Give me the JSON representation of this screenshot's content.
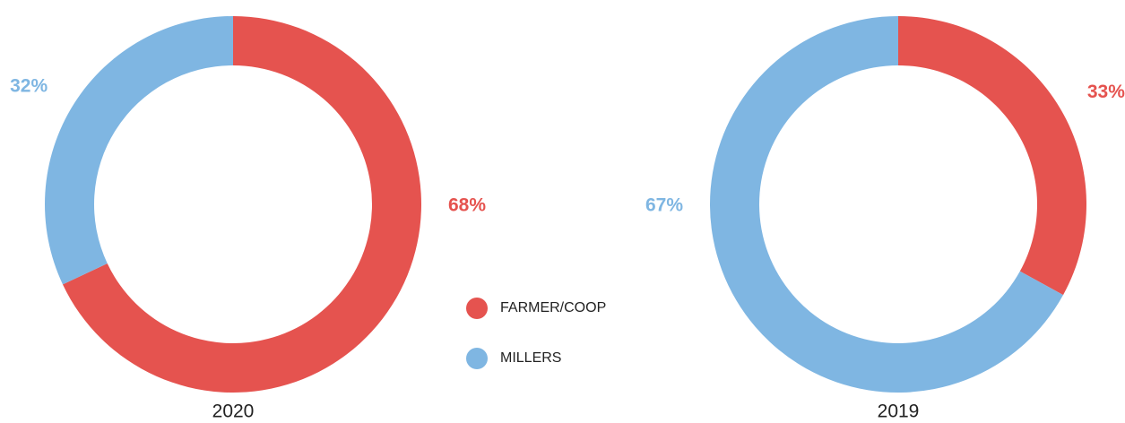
{
  "chart_data": [
    {
      "type": "donut",
      "title": "2020",
      "categories": [
        "FARMER/COOP",
        "MILLERS"
      ],
      "values": [
        68,
        32
      ],
      "value_labels": [
        "68%",
        "32%"
      ],
      "colors": [
        "#e5534f",
        "#7fb6e2"
      ]
    },
    {
      "type": "donut",
      "title": "2019",
      "categories": [
        "FARMER/COOP",
        "MILLERS"
      ],
      "values": [
        33,
        67
      ],
      "value_labels": [
        "33%",
        "67%"
      ],
      "colors": [
        "#e5534f",
        "#7fb6e2"
      ]
    }
  ]
}
